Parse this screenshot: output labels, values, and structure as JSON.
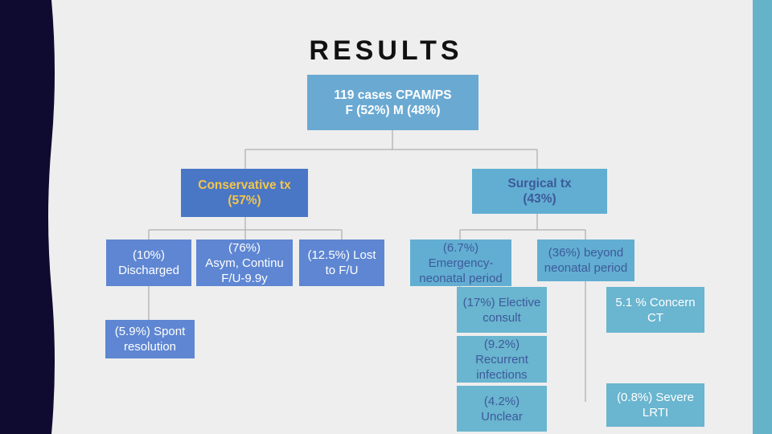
{
  "slide": {
    "title": "RESULTS",
    "colors": {
      "background": "#eeeeee",
      "left_band": "#0f0a30",
      "right_band": "#64b3c8",
      "root_box": "#6aa9d2",
      "conservative_box": "#4a76c6",
      "surgical_box": "#62aed2",
      "result_box": "#5e86d2",
      "detail_box": "#6ab5cf"
    }
  },
  "diagram": {
    "root": {
      "line1": "119 cases CPAM/PS",
      "line2": "F (52%) M (48%)"
    },
    "conservative": {
      "line1": "Conservative tx",
      "line2": "(57%)",
      "children": [
        {
          "line1": "(10%)",
          "line2": "Discharged"
        },
        {
          "line1": "(76%)",
          "line2": "Asym, Continu",
          "line3": "F/U-9.9y"
        },
        {
          "line1": "(12.5%) Lost",
          "line2": "to F/U"
        }
      ],
      "extra": {
        "line1": "(5.9%) Spont",
        "line2": "resolution"
      }
    },
    "surgical": {
      "line1": "Surgical tx",
      "line2": "(43%)",
      "children": [
        {
          "line1": "(6.7%)",
          "line2": "Emergency-",
          "line3": "neonatal period"
        },
        {
          "line1": "(36%) beyond",
          "line2": "neonatal period"
        }
      ],
      "emergency_details": [
        {
          "line1": "(17%) Elective",
          "line2": "consult"
        },
        {
          "line1": "(9.2%)",
          "line2": "Recurrent",
          "line3": "infections"
        },
        {
          "line1": "(4.2%)",
          "line2": "Unclear"
        }
      ],
      "beyond_details": [
        {
          "line1": "5.1 % Concern",
          "line2": "CT"
        },
        {
          "line1": "(0.8%) Severe",
          "line2": "LRTI"
        }
      ]
    }
  }
}
